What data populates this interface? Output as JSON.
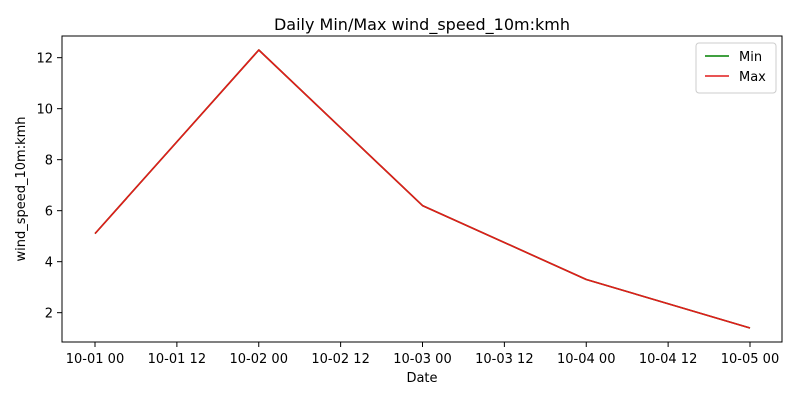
{
  "chart_data": {
    "type": "line",
    "title": "Daily Min/Max wind_speed_10m:kmh",
    "xlabel": "Date",
    "ylabel": "wind_speed_10m:kmh",
    "x": [
      "2024-10-01 00:00",
      "2024-10-02 00:00",
      "2024-10-03 00:00",
      "2024-10-04 00:00",
      "2024-10-05 00:00"
    ],
    "x_tick_labels": [
      "10-01 00",
      "10-01 12",
      "10-02 00",
      "10-02 12",
      "10-03 00",
      "10-03 12",
      "10-04 00",
      "10-04 12",
      "10-05 00"
    ],
    "y_ticks": [
      2,
      4,
      6,
      8,
      10,
      12
    ],
    "ylim": [
      0.85,
      12.85
    ],
    "grid": false,
    "legend_position": "top-right",
    "series": [
      {
        "name": "Min",
        "color": "#008000",
        "values": [
          5.1,
          12.3,
          6.2,
          3.3,
          1.4
        ]
      },
      {
        "name": "Max",
        "color": "#e01b1b",
        "values": [
          5.1,
          12.3,
          6.2,
          3.3,
          1.4
        ]
      }
    ]
  }
}
